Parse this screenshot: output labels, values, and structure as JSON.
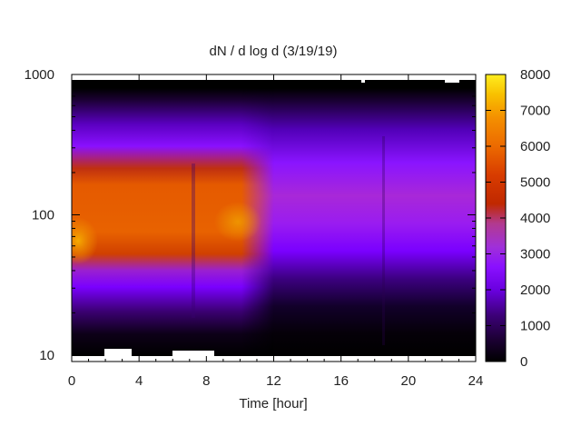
{
  "chart_data": {
    "type": "heatmap",
    "title": "dN / d log d (3/19/19)",
    "xlabel": "Time [hour]",
    "ylabel": "",
    "x_range": [
      0,
      24
    ],
    "x_ticks": [
      0,
      4,
      8,
      12,
      16,
      20,
      24
    ],
    "y_scale": "log",
    "y_range": [
      9,
      1000
    ],
    "y_ticks": [
      10,
      100,
      1000
    ],
    "color_range": [
      0,
      8000
    ],
    "colorbar_ticks": [
      0,
      1000,
      2000,
      3000,
      4000,
      5000,
      6000,
      7000,
      8000
    ],
    "colormap": "black-purple-red-orange-yellow",
    "colormap_stops": [
      "#000000",
      "#3a0070",
      "#8a00ff",
      "#b23ac8",
      "#c02800",
      "#e04a00",
      "#f08a00",
      "#ffe020"
    ],
    "features": [
      {
        "x_range": [
          0,
          11.5
        ],
        "y_range": [
          40,
          190
        ],
        "value": 5500,
        "note": ""
      },
      {
        "x_range": [
          0,
          1
        ],
        "y_range": [
          50,
          80
        ],
        "value": 7000,
        "note": ""
      },
      {
        "x_range": [
          11.5,
          24
        ],
        "y_range": [
          30,
          300
        ],
        "value": 2500,
        "note": ""
      }
    ],
    "grid": false,
    "legend": "colorbar-right"
  }
}
